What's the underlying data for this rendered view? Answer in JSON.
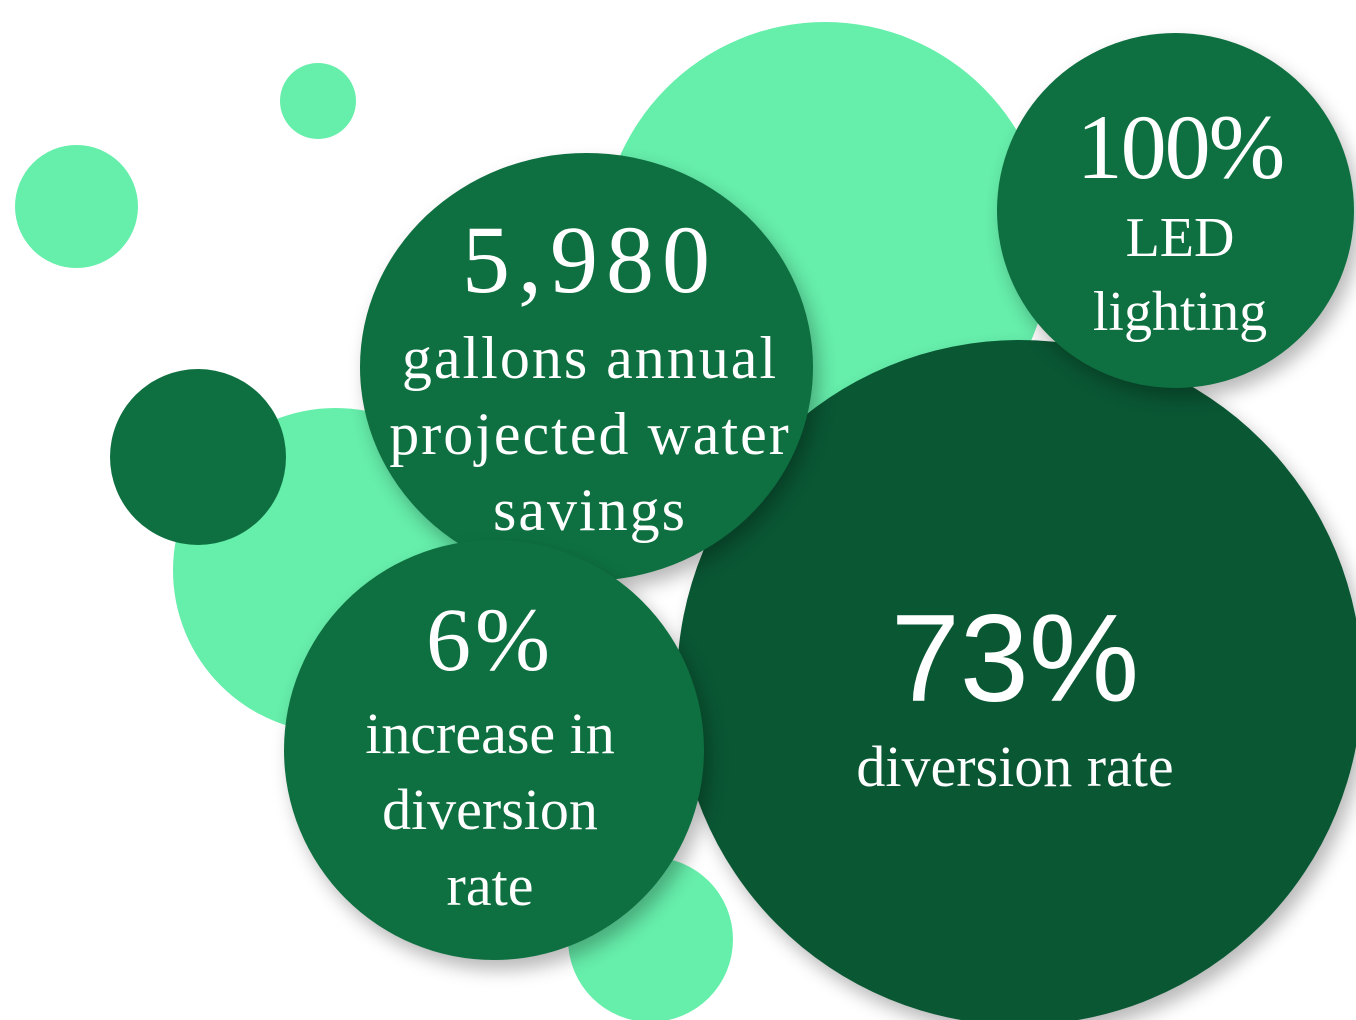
{
  "colors": {
    "light_green": "#66eeab",
    "medium_green": "#0e7040",
    "dark_green": "#0a5734",
    "text": "#ffffff"
  },
  "stats": {
    "water": {
      "value": "5,980",
      "label": "gallons annual projected water savings"
    },
    "led": {
      "value": "100%",
      "label": "LED lighting"
    },
    "increase": {
      "value": "6%",
      "label": "increase in diversion rate"
    },
    "diversion": {
      "value": "73%",
      "label": "diversion rate"
    }
  }
}
